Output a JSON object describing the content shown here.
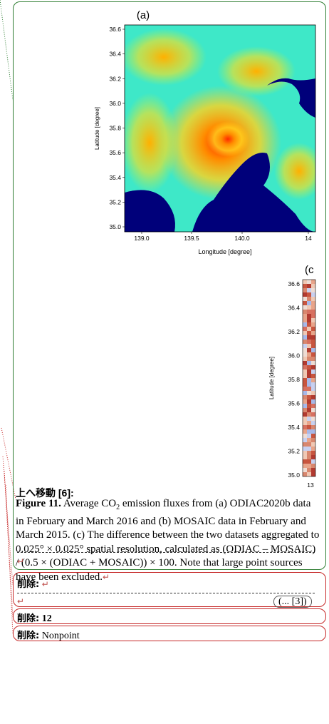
{
  "panel_a": {
    "label": "(a)",
    "y_axis_label": "Latitude [degree]",
    "x_axis_label": "Longitude [degree]",
    "yticks": [
      "36.6",
      "36.4",
      "36.2",
      "36.0",
      "35.8",
      "35.6",
      "35.4",
      "35.2",
      "35.0"
    ],
    "xticks": [
      "139.0",
      "139.5",
      "140.0",
      "14"
    ]
  },
  "panel_c": {
    "label": "(c",
    "y_axis_label": "Latitude [degree]",
    "yticks": [
      "36.6",
      "36.4",
      "36.2",
      "36.0",
      "35.8",
      "35.6",
      "35.4",
      "35.2",
      "35.0"
    ],
    "xticks": [
      "13"
    ]
  },
  "moved": {
    "label": "上へ移動 [6]:"
  },
  "caption": {
    "label": "Figure 11.",
    "text_before": " Average CO",
    "subscript": "2",
    "text_after": " emission fluxes from (a) ODIAC2020b data in February and March 2016 and (b) MOSAIC data in February and March 2015. (c) The difference between the two datasets aggregated to 0.025° × 0.025° spatial resolution, calculated as (ODIAC – MOSAIC) / (0.5 × (ODIAC + MOSAIC)) × 100. Note that large point sources have been excluded."
  },
  "deletions": [
    {
      "label": "削除:",
      "text": "",
      "ref": "... [3]"
    },
    {
      "label": "削除:",
      "text": "12"
    },
    {
      "label": "削除:",
      "text": "Nonpoint"
    }
  ]
}
